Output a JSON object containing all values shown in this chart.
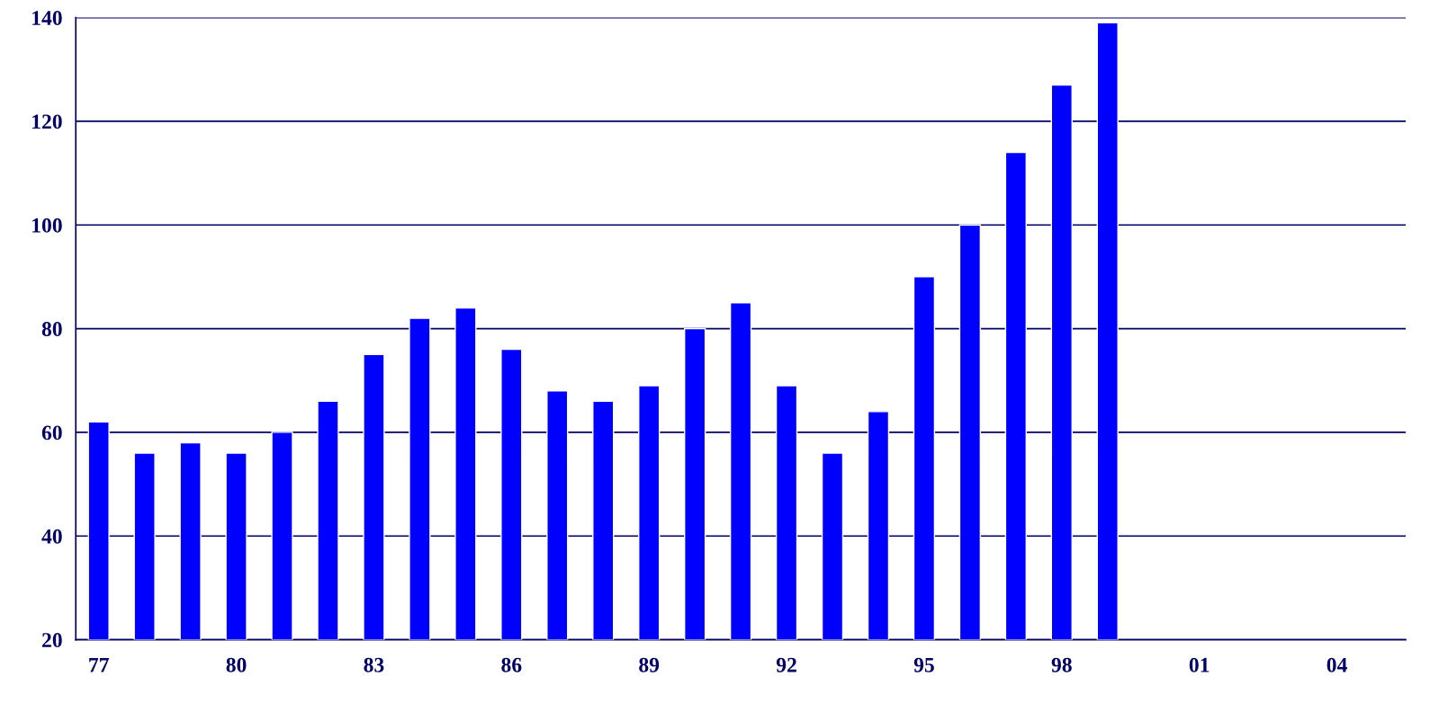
{
  "chart_data": {
    "type": "bar",
    "categories": [
      "77",
      null,
      null,
      "80",
      null,
      null,
      "83",
      null,
      null,
      "86",
      null,
      null,
      "89",
      null,
      null,
      "92",
      null,
      null,
      "95",
      null,
      null,
      "98",
      null,
      null,
      "01",
      null,
      null,
      "04",
      null
    ],
    "values": [
      62,
      56,
      58,
      56,
      60,
      66,
      75,
      82,
      84,
      76,
      68,
      66,
      69,
      80,
      85,
      69,
      56,
      64,
      90,
      100,
      114,
      127,
      139,
      null,
      null,
      null,
      null,
      null,
      null
    ],
    "color": "#0000ff",
    "ylim": [
      20,
      140
    ],
    "yticks": [
      20,
      40,
      60,
      80,
      100,
      120,
      140
    ],
    "grid": "y"
  }
}
